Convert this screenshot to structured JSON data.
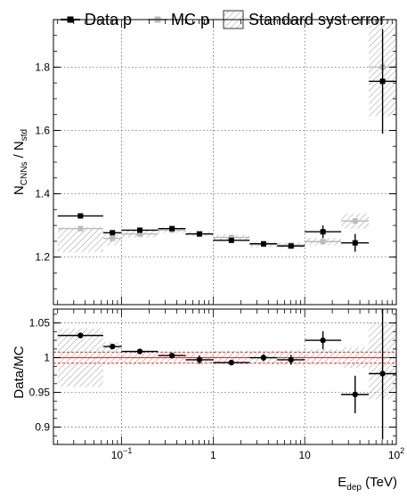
{
  "chart_data": [
    {
      "type": "scatter",
      "panel": "top",
      "title": "",
      "xlabel": "",
      "ylabel": "N_CNNs / N_std",
      "ylabel_main": "N",
      "ylabel_sub1": "CNNs",
      "ylabel_mid": " / N",
      "ylabel_sub2": "std",
      "x_scale": "log",
      "xlim": [
        0.018,
        100
      ],
      "ylim": [
        1.05,
        1.95
      ],
      "yticks": [
        1.2,
        1.4,
        1.6,
        1.8
      ],
      "ytick_labels": [
        "1.2",
        "1.4",
        "1.6",
        "1.8"
      ],
      "grid": true,
      "legend_position": "top",
      "legend": {
        "data_label": "Data  p",
        "mc_label": "MC  p",
        "syst_label": "Standard syst error"
      },
      "series": [
        {
          "name": "Data  p",
          "color": "#000000",
          "points": [
            {
              "x": 0.0355,
              "xlo": 0.02,
              "xhi": 0.063,
              "y": 1.33,
              "yerr": 0.004
            },
            {
              "x": 0.0794,
              "xlo": 0.063,
              "xhi": 0.1,
              "y": 1.277,
              "yerr": 0.004
            },
            {
              "x": 0.158,
              "xlo": 0.1,
              "xhi": 0.25,
              "y": 1.285,
              "yerr": 0.004
            },
            {
              "x": 0.355,
              "xlo": 0.25,
              "xhi": 0.5,
              "y": 1.29,
              "yerr": 0.004
            },
            {
              "x": 0.708,
              "xlo": 0.5,
              "xhi": 1.0,
              "y": 1.273,
              "yerr": 0.004
            },
            {
              "x": 1.58,
              "xlo": 1.0,
              "xhi": 2.5,
              "y": 1.253,
              "yerr": 0.004
            },
            {
              "x": 3.55,
              "xlo": 2.5,
              "xhi": 5.0,
              "y": 1.242,
              "yerr": 0.005
            },
            {
              "x": 7.08,
              "xlo": 5.0,
              "xhi": 10.0,
              "y": 1.235,
              "yerr": 0.006
            },
            {
              "x": 15.8,
              "xlo": 10.0,
              "xhi": 25.0,
              "y": 1.28,
              "yerr": 0.02
            },
            {
              "x": 35.5,
              "xlo": 25.0,
              "xhi": 50.0,
              "y": 1.245,
              "yerr": 0.028
            },
            {
              "x": 70.8,
              "xlo": 50.0,
              "xhi": 100.0,
              "y": 1.755,
              "yerr": 0.165
            }
          ]
        },
        {
          "name": "MC  p",
          "color": "#bbbbbb",
          "points": [
            {
              "x": 0.0355,
              "xlo": 0.02,
              "xhi": 0.063,
              "y": 1.29
            },
            {
              "x": 0.0794,
              "xlo": 0.063,
              "xhi": 0.1,
              "y": 1.259
            },
            {
              "x": 0.158,
              "xlo": 0.1,
              "xhi": 0.25,
              "y": 1.273
            },
            {
              "x": 0.355,
              "xlo": 0.25,
              "xhi": 0.5,
              "y": 1.285
            },
            {
              "x": 0.708,
              "xlo": 0.5,
              "xhi": 1.0,
              "y": 1.274
            },
            {
              "x": 1.58,
              "xlo": 1.0,
              "xhi": 2.5,
              "y": 1.262
            },
            {
              "x": 3.55,
              "xlo": 2.5,
              "xhi": 5.0,
              "y": 1.24
            },
            {
              "x": 7.08,
              "xlo": 5.0,
              "xhi": 10.0,
              "y": 1.238
            },
            {
              "x": 15.8,
              "xlo": 10.0,
              "xhi": 25.0,
              "y": 1.249
            },
            {
              "x": 35.5,
              "xlo": 25.0,
              "xhi": 50.0,
              "y": 1.314
            },
            {
              "x": 70.8,
              "xlo": 50.0,
              "xhi": 100.0,
              "y": 1.8
            }
          ]
        }
      ],
      "syst_bands": [
        {
          "xlo": 0.02,
          "xhi": 0.063,
          "ylo": 1.215,
          "yhi": 1.295
        },
        {
          "xlo": 0.063,
          "xhi": 0.1,
          "ylo": 1.237,
          "yhi": 1.278
        },
        {
          "xlo": 0.1,
          "xhi": 0.25,
          "ylo": 1.262,
          "yhi": 1.285
        },
        {
          "xlo": 0.25,
          "xhi": 0.5,
          "ylo": 1.277,
          "yhi": 1.294
        },
        {
          "xlo": 0.5,
          "xhi": 1.0,
          "ylo": 1.267,
          "yhi": 1.281
        },
        {
          "xlo": 1.0,
          "xhi": 2.5,
          "ylo": 1.253,
          "yhi": 1.271
        },
        {
          "xlo": 2.5,
          "xhi": 5.0,
          "ylo": 1.231,
          "yhi": 1.249
        },
        {
          "xlo": 5.0,
          "xhi": 10.0,
          "ylo": 1.228,
          "yhi": 1.247
        },
        {
          "xlo": 10.0,
          "xhi": 25.0,
          "ylo": 1.237,
          "yhi": 1.261
        },
        {
          "xlo": 25.0,
          "xhi": 50.0,
          "ylo": 1.29,
          "yhi": 1.338
        },
        {
          "xlo": 50.0,
          "xhi": 100.0,
          "ylo": 1.645,
          "yhi": 1.95
        }
      ]
    },
    {
      "type": "scatter",
      "panel": "bottom",
      "title": "",
      "ylabel": "Data/MC",
      "xlabel": "E_dep (TeV)",
      "xlabel_main": "E",
      "xlabel_sub": "dep",
      "xlabel_unit": " (TeV)",
      "x_scale": "log",
      "xlim": [
        0.018,
        100
      ],
      "xticks": [
        0.1,
        1,
        10,
        100
      ],
      "xtick_labels": [
        {
          "base": "10",
          "exp": "−1"
        },
        {
          "base": "1",
          "exp": ""
        },
        {
          "base": "10",
          "exp": ""
        },
        {
          "base": "10",
          "exp": "2"
        }
      ],
      "ylim": [
        0.875,
        1.07
      ],
      "yticks": [
        0.9,
        0.95,
        1.0,
        1.05
      ],
      "ytick_labels": [
        "0.9",
        "0.95",
        "1",
        "1.05"
      ],
      "grid": true,
      "reference_line": {
        "y": 1.0,
        "color": "#e8332a"
      },
      "reference_band": {
        "ylo": 0.992,
        "yhi": 1.008,
        "color": "#e8332a"
      },
      "series": [
        {
          "name": "",
          "color": "#000000",
          "points": [
            {
              "x": 0.0355,
              "xlo": 0.02,
              "xhi": 0.063,
              "y": 1.032,
              "yerr": 0.003
            },
            {
              "x": 0.0794,
              "xlo": 0.063,
              "xhi": 0.1,
              "y": 1.016,
              "yerr": 0.003
            },
            {
              "x": 0.158,
              "xlo": 0.1,
              "xhi": 0.25,
              "y": 1.009,
              "yerr": 0.003
            },
            {
              "x": 0.355,
              "xlo": 0.25,
              "xhi": 0.5,
              "y": 1.003,
              "yerr": 0.004
            },
            {
              "x": 0.708,
              "xlo": 0.5,
              "xhi": 1.0,
              "y": 0.997,
              "yerr": 0.006
            },
            {
              "x": 1.58,
              "xlo": 1.0,
              "xhi": 2.5,
              "y": 0.993,
              "yerr": 0.004
            },
            {
              "x": 3.55,
              "xlo": 2.5,
              "xhi": 5.0,
              "y": 1.0,
              "yerr": 0.005
            },
            {
              "x": 7.08,
              "xlo": 5.0,
              "xhi": 10.0,
              "y": 0.997,
              "yerr": 0.007
            },
            {
              "x": 15.8,
              "xlo": 10.0,
              "xhi": 25.0,
              "y": 1.025,
              "yerr": 0.013
            },
            {
              "x": 35.5,
              "xlo": 25.0,
              "xhi": 50.0,
              "y": 0.947,
              "yerr": 0.027
            },
            {
              "x": 70.8,
              "xlo": 50.0,
              "xhi": 100.0,
              "y": 0.977,
              "yerr": 0.095
            }
          ]
        }
      ],
      "syst_bands": [
        {
          "xlo": 0.02,
          "xhi": 0.063,
          "ylo": 0.958,
          "yhi": 1.042
        },
        {
          "xlo": 0.063,
          "xhi": 0.1,
          "ylo": 0.99,
          "yhi": 1.022
        },
        {
          "xlo": 0.1,
          "xhi": 0.25,
          "ylo": 0.99,
          "yhi": 1.01
        },
        {
          "xlo": 0.25,
          "xhi": 0.5,
          "ylo": 0.992,
          "yhi": 1.008
        },
        {
          "xlo": 0.5,
          "xhi": 1.0,
          "ylo": 0.992,
          "yhi": 1.008
        },
        {
          "xlo": 1.0,
          "xhi": 2.5,
          "ylo": 0.99,
          "yhi": 1.01
        },
        {
          "xlo": 2.5,
          "xhi": 5.0,
          "ylo": 0.99,
          "yhi": 1.01
        },
        {
          "xlo": 5.0,
          "xhi": 10.0,
          "ylo": 0.989,
          "yhi": 1.011
        },
        {
          "xlo": 10.0,
          "xhi": 25.0,
          "ylo": 0.99,
          "yhi": 1.012
        },
        {
          "xlo": 25.0,
          "xhi": 50.0,
          "ylo": 0.985,
          "yhi": 1.015
        },
        {
          "xlo": 50.0,
          "xhi": 100.0,
          "ylo": 0.94,
          "yhi": 1.05
        }
      ]
    }
  ]
}
